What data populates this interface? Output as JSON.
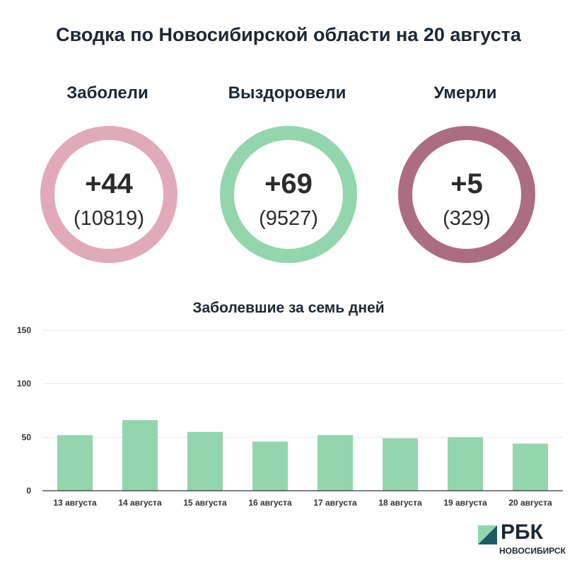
{
  "title": "Сводка по Новосибирской области на 20 августа",
  "stats": [
    {
      "label": "Заболели",
      "value": "+44",
      "total": "(10819)",
      "color": "#e1aabb"
    },
    {
      "label": "Выздоровели",
      "value": "+69",
      "total": "(9527)",
      "color": "#93d6ad"
    },
    {
      "label": "Умерли",
      "value": "+5",
      "total": "(329)",
      "color": "#ac6d83"
    }
  ],
  "chart_data": {
    "type": "bar",
    "title": "Заболевшие за семь дней",
    "categories": [
      "13 августа",
      "14 августа",
      "15 августа",
      "16 августа",
      "17 августа",
      "18 августа",
      "19 августа",
      "20 августа"
    ],
    "values": [
      52,
      66,
      55,
      46,
      52,
      49,
      50,
      44
    ],
    "yticks": [
      0,
      50,
      100,
      150
    ],
    "ylim": [
      0,
      150
    ],
    "color": "#93d6ad",
    "grid": true
  },
  "logo": {
    "name": "РБК",
    "sub": "НОВОСИБИРСК",
    "mark_colors": [
      "#93d6ad",
      "#1d5c63"
    ]
  }
}
